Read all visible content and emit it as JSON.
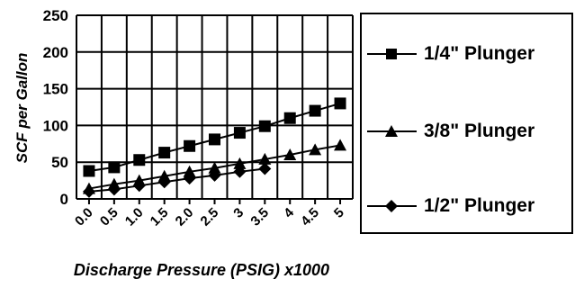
{
  "chart_data": {
    "type": "line",
    "title": "",
    "xlabel": "Discharge Pressure (PSIG) x1000",
    "ylabel": "SCF per Gallon",
    "categories": [
      "0.0",
      "0.5",
      "1.0",
      "1.5",
      "2.0",
      "2.5",
      "3",
      "3.5",
      "4",
      "4.5",
      "5"
    ],
    "ylim": [
      0,
      250
    ],
    "yticks": [
      "0",
      "50",
      "100",
      "150",
      "200",
      "250"
    ],
    "grid": true,
    "legend_position": "right",
    "series": [
      {
        "name": "1/4\" Plunger",
        "marker": "square",
        "values": [
          38,
          43,
          53,
          63,
          72,
          81,
          90,
          99,
          110,
          120,
          130
        ]
      },
      {
        "name": "3/8\" Plunger",
        "marker": "triangle",
        "values": [
          14,
          20,
          25,
          31,
          37,
          42,
          48,
          54,
          60,
          67,
          73
        ]
      },
      {
        "name": "1/2\" Plunger",
        "marker": "diamond",
        "values": [
          10,
          13,
          18,
          23,
          28,
          32,
          37,
          41,
          null,
          null,
          null
        ]
      }
    ]
  }
}
